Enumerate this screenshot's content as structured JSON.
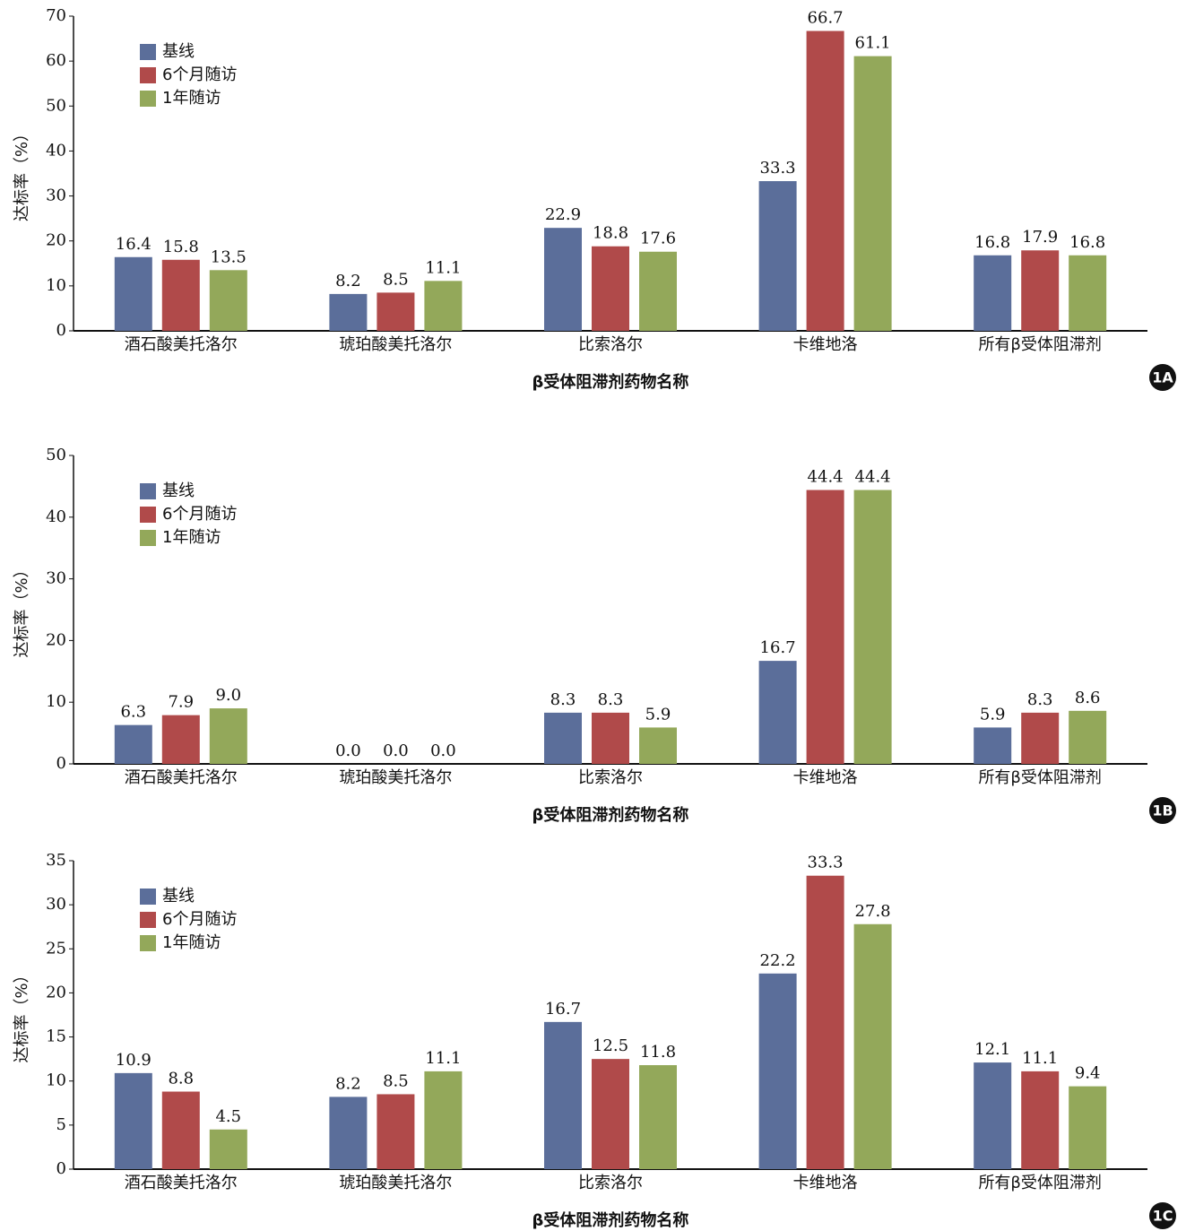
{
  "chart_data": [
    {
      "type": "bar",
      "panel_label": "1A",
      "ylabel": "达标率（%）",
      "xlabel": "β受体阻滞剂药物名称",
      "categories": [
        "酒石酸美托洛尔",
        "琥珀酸美托洛尔",
        "比索洛尔",
        "卡维地洛",
        "所有β受体阻滞剂"
      ],
      "series": [
        {
          "name": "基线",
          "color": "#5b6e9a",
          "values": [
            16.4,
            8.2,
            22.9,
            33.3,
            16.8
          ],
          "value_labels": [
            "16.4",
            "8.2",
            "22.9",
            "33.3",
            "16.8"
          ]
        },
        {
          "name": "6个月随访",
          "color": "#b04a4a",
          "values": [
            15.8,
            8.5,
            18.8,
            66.7,
            17.9
          ],
          "value_labels": [
            "15.8",
            "8.5",
            "18.8",
            "66.7",
            "17.9"
          ]
        },
        {
          "name": "1年随访",
          "color": "#93a85a",
          "values": [
            13.5,
            11.1,
            17.6,
            61.1,
            16.8
          ],
          "value_labels": [
            "13.5",
            "11.1",
            "17.6",
            "61.1",
            "16.8"
          ]
        }
      ],
      "ylim": [
        0,
        70
      ],
      "yticks": [
        0,
        10,
        20,
        30,
        40,
        50,
        60,
        70
      ],
      "grid": false,
      "legend": "upper left"
    },
    {
      "type": "bar",
      "panel_label": "1B",
      "ylabel": "达标率（%）",
      "xlabel": "β受体阻滞剂药物名称",
      "categories": [
        "酒石酸美托洛尔",
        "琥珀酸美托洛尔",
        "比索洛尔",
        "卡维地洛",
        "所有β受体阻滞剂"
      ],
      "series": [
        {
          "name": "基线",
          "color": "#5b6e9a",
          "values": [
            6.3,
            0,
            8.3,
            16.7,
            5.9
          ],
          "value_labels": [
            "6.3",
            "0.0",
            "8.3",
            "16.7",
            "5.9"
          ]
        },
        {
          "name": "6个月随访",
          "color": "#b04a4a",
          "values": [
            7.9,
            0,
            8.3,
            44.4,
            8.3
          ],
          "value_labels": [
            "7.9",
            "0.0",
            "8.3",
            "44.4",
            "8.3"
          ]
        },
        {
          "name": "1年随访",
          "color": "#93a85a",
          "values": [
            9,
            0,
            5.9,
            44.4,
            8.6
          ],
          "value_labels": [
            "9.0",
            "0.0",
            "5.9",
            "44.4",
            "8.6"
          ]
        }
      ],
      "ylim": [
        0,
        50
      ],
      "yticks": [
        0,
        10,
        20,
        30,
        40,
        50
      ],
      "grid": false,
      "legend": "upper left"
    },
    {
      "type": "bar",
      "panel_label": "1C",
      "ylabel": "达标率（%）",
      "xlabel": "β受体阻滞剂药物名称",
      "categories": [
        "酒石酸美托洛尔",
        "琥珀酸美托洛尔",
        "比索洛尔",
        "卡维地洛",
        "所有β受体阻滞剂"
      ],
      "series": [
        {
          "name": "基线",
          "color": "#5b6e9a",
          "values": [
            10.9,
            8.2,
            16.7,
            22.2,
            12.1
          ],
          "value_labels": [
            "10.9",
            "8.2",
            "16.7",
            "22.2",
            "12.1"
          ]
        },
        {
          "name": "6个月随访",
          "color": "#b04a4a",
          "values": [
            8.8,
            8.5,
            12.5,
            33.3,
            11.1
          ],
          "value_labels": [
            "8.8",
            "8.5",
            "12.5",
            "33.3",
            "11.1"
          ]
        },
        {
          "name": "1年随访",
          "color": "#93a85a",
          "values": [
            4.5,
            11.1,
            11.8,
            27.8,
            9.4
          ],
          "value_labels": [
            "4.5",
            "11.1",
            "11.8",
            "27.8",
            "9.4"
          ]
        }
      ],
      "ylim": [
        0,
        35
      ],
      "yticks": [
        0,
        5,
        10,
        15,
        20,
        25,
        30,
        35
      ],
      "grid": false,
      "legend": "upper left"
    }
  ]
}
